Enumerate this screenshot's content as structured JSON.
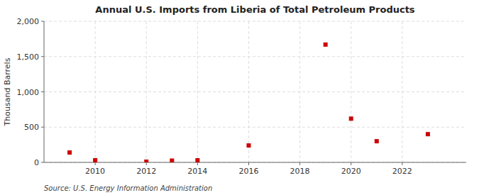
{
  "chart_data": {
    "type": "scatter",
    "title": "Annual U.S. Imports from Liberia of Total Petroleum Products",
    "y_label": "Thousand Barrels",
    "annotations": [
      "Source: U.S. Energy Information Administration"
    ],
    "x": [
      2009,
      2010,
      2012,
      2013,
      2014,
      2016,
      2019,
      2020,
      2021,
      2023
    ],
    "values": [
      140,
      30,
      10,
      25,
      30,
      240,
      1670,
      620,
      300,
      400
    ],
    "color": "#CC0000",
    "marker": "square",
    "xlim": [
      2008.0,
      2024.5
    ],
    "ylim": [
      0,
      2000
    ],
    "xticks": [
      2010,
      2012,
      2014,
      2016,
      2018,
      2020,
      2022
    ],
    "yticks": [
      0,
      500,
      {
        "value": 1000,
        "label": "1,000"
      },
      {
        "value": 1500,
        "label": "1,500"
      },
      {
        "value": 2000,
        "label": "2,000"
      }
    ],
    "grid": true
  }
}
